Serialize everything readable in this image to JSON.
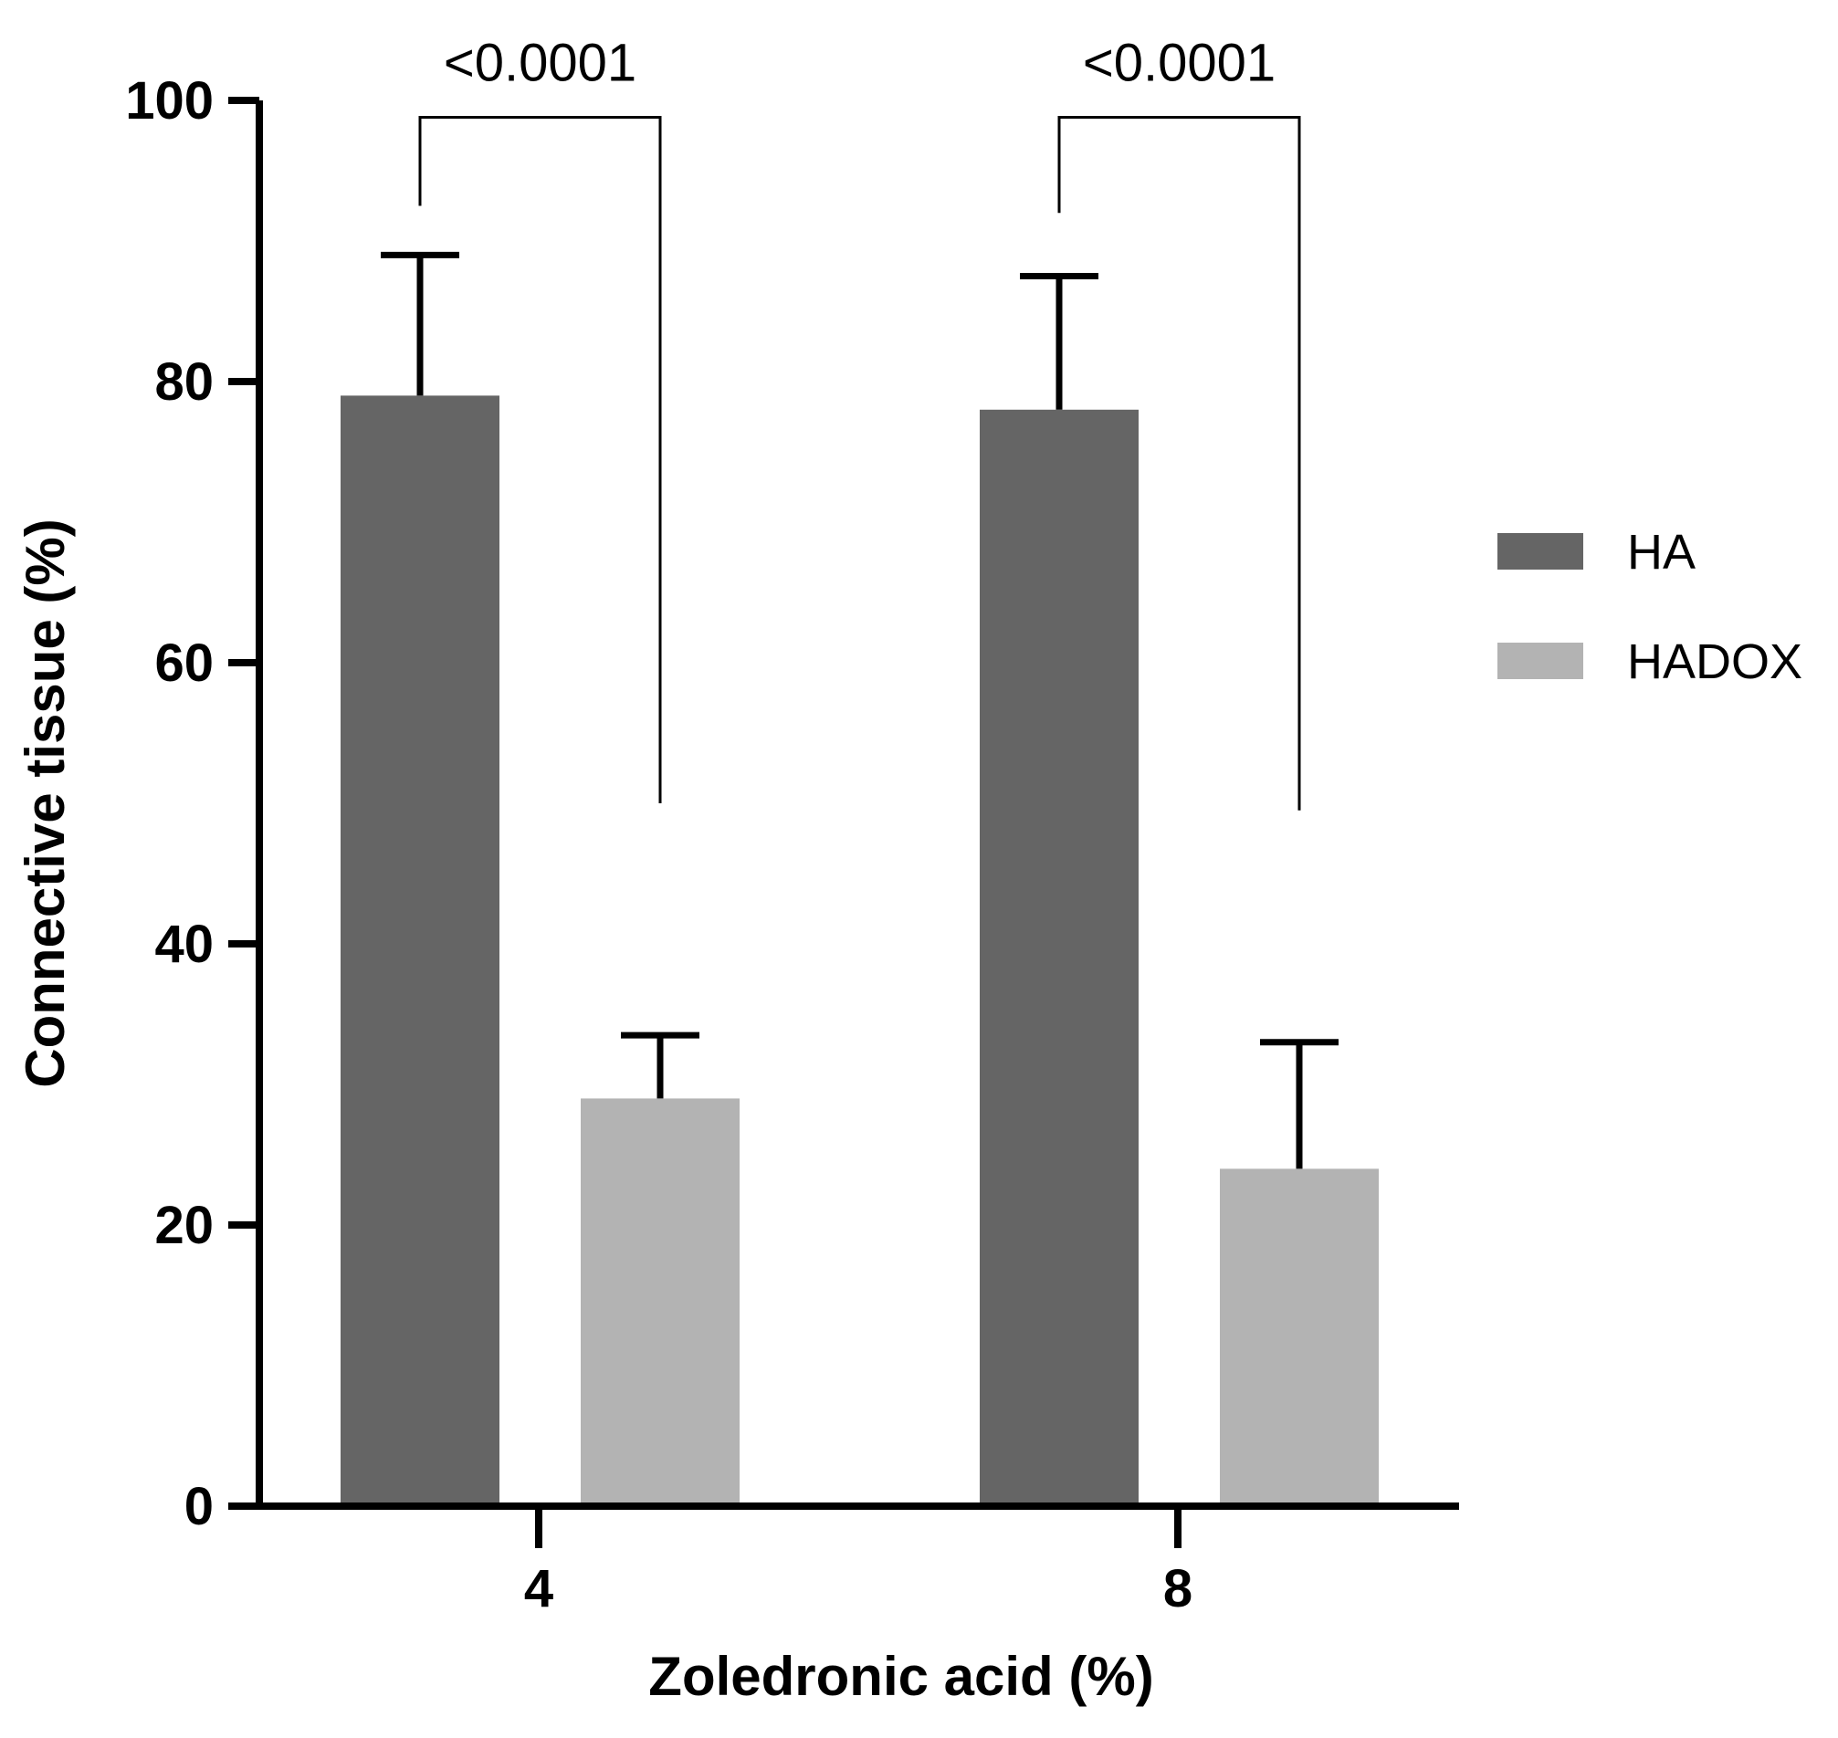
{
  "chart_data": {
    "type": "bar",
    "title": "",
    "xlabel": "Zoledronic acid (%)",
    "ylabel": "Connective tissue (%)",
    "categories": [
      "4",
      "8"
    ],
    "ylim": [
      0,
      100
    ],
    "yticks": [
      0,
      20,
      40,
      60,
      80,
      100
    ],
    "ytick_labels": [
      "0",
      "20",
      "40",
      "60",
      "80",
      "100"
    ],
    "grid": false,
    "legend_position": "right",
    "series": [
      {
        "name": "HA",
        "color": "#656565",
        "values": [
          79,
          78
        ],
        "error_upper": [
          89,
          87.5
        ]
      },
      {
        "name": "HADOX",
        "color": "#b3b3b3",
        "values": [
          29,
          24
        ],
        "error_upper": [
          33.5,
          33
        ]
      }
    ],
    "annotations": [
      {
        "text": "<0.0001",
        "category": "4",
        "left_y": 92.5,
        "right_y": 50,
        "top_y": 98.8
      },
      {
        "text": "<0.0001",
        "category": "8",
        "left_y": 92,
        "right_y": 49.5,
        "top_y": 98.8
      }
    ]
  }
}
